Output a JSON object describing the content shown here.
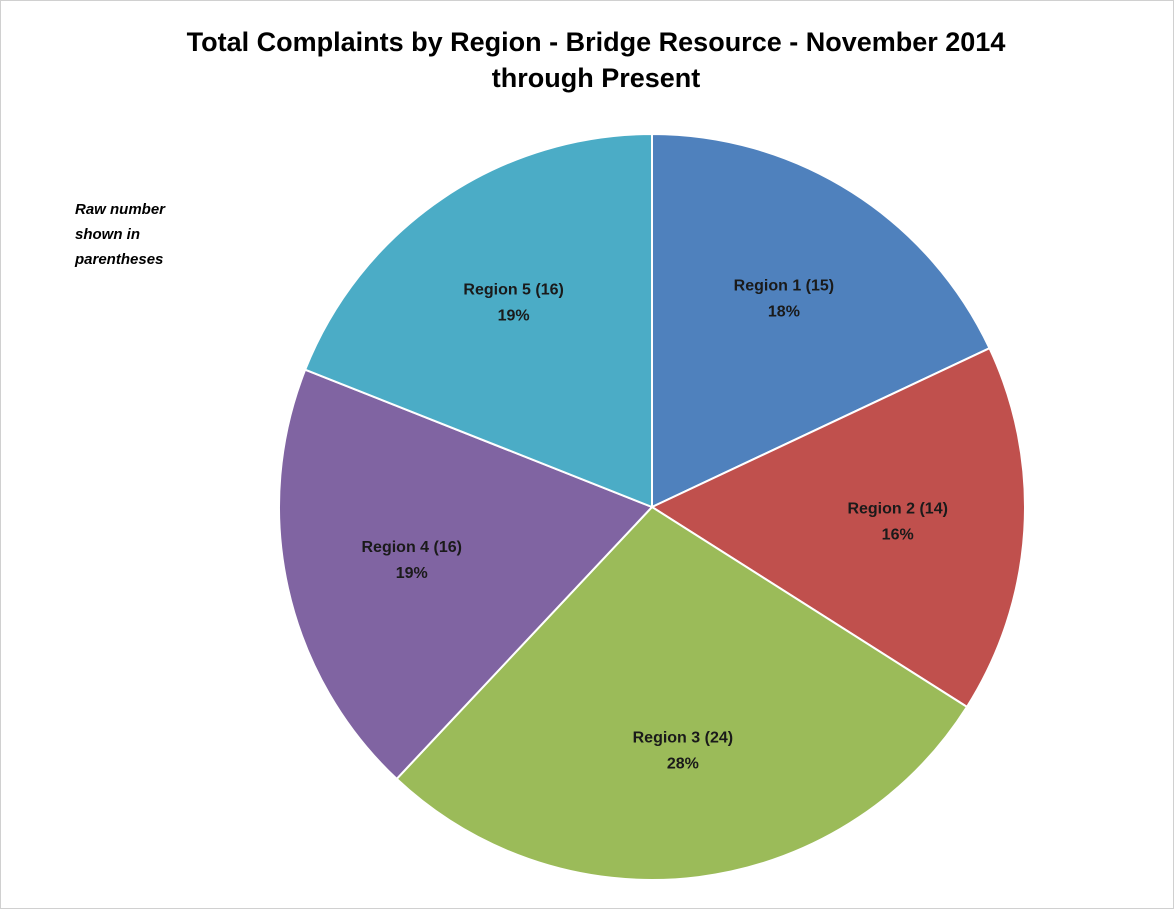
{
  "chart_data": {
    "type": "pie",
    "title": [
      "Total Complaints by Region - Bridge Resource - November 2014",
      "through Present"
    ],
    "note": [
      "Raw number",
      "shown in",
      "parentheses"
    ],
    "categories": [
      "Region 1 (15)",
      "Region 2 (14)",
      "Region 3 (24)",
      "Region 4 (16)",
      "Region 5 (16)"
    ],
    "values": [
      18,
      16,
      28,
      19,
      19
    ],
    "value_labels": [
      "18%",
      "16%",
      "28%",
      "19%",
      "19%"
    ],
    "colors": [
      "#4f81bd",
      "#c0504d",
      "#9bbb59",
      "#8064a2",
      "#4bacc6"
    ]
  }
}
